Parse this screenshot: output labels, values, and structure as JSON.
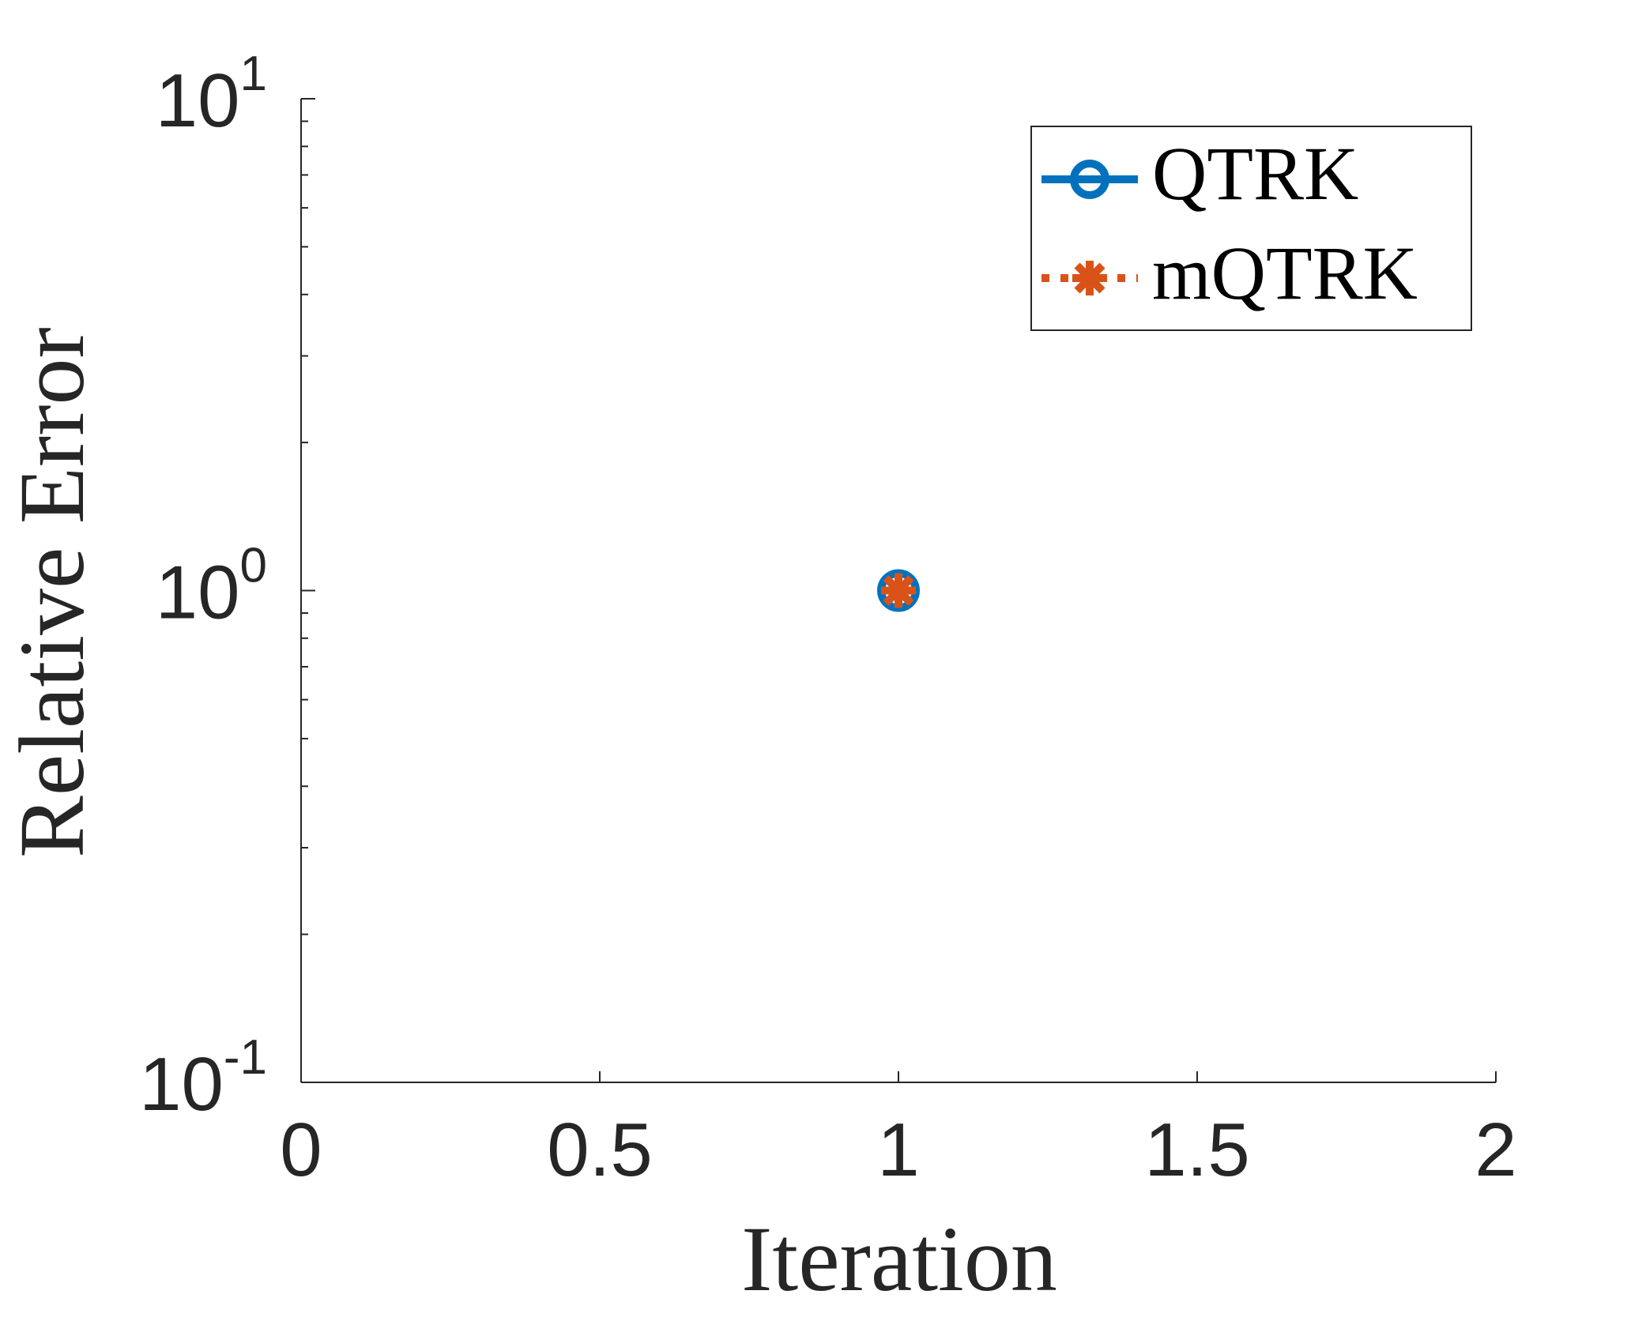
{
  "chart_data": {
    "type": "line",
    "xlabel": "Iteration",
    "ylabel": "Relative Error",
    "xlim": [
      0,
      2
    ],
    "ylim": [
      0.1,
      10
    ],
    "yscale": "log",
    "xticks": [
      0,
      0.5,
      1,
      1.5,
      2
    ],
    "xtick_labels": [
      "0",
      "0.5",
      "1",
      "1.5",
      "2"
    ],
    "ytick_labels": [
      {
        "base": "10",
        "exp": "-1"
      },
      {
        "base": "10",
        "exp": "0"
      },
      {
        "base": "10",
        "exp": "1"
      }
    ],
    "yticks": [
      0.1,
      1,
      10
    ],
    "grid": false,
    "legend_position": "top-right",
    "series": [
      {
        "name": "QTRK",
        "x": [
          1
        ],
        "y": [
          1
        ],
        "color": "#0072BD",
        "marker": "circle",
        "line": "solid"
      },
      {
        "name": "mQTRK",
        "x": [
          1
        ],
        "y": [
          1
        ],
        "color": "#D95319",
        "marker": "asterisk",
        "line": "dotted"
      }
    ]
  }
}
